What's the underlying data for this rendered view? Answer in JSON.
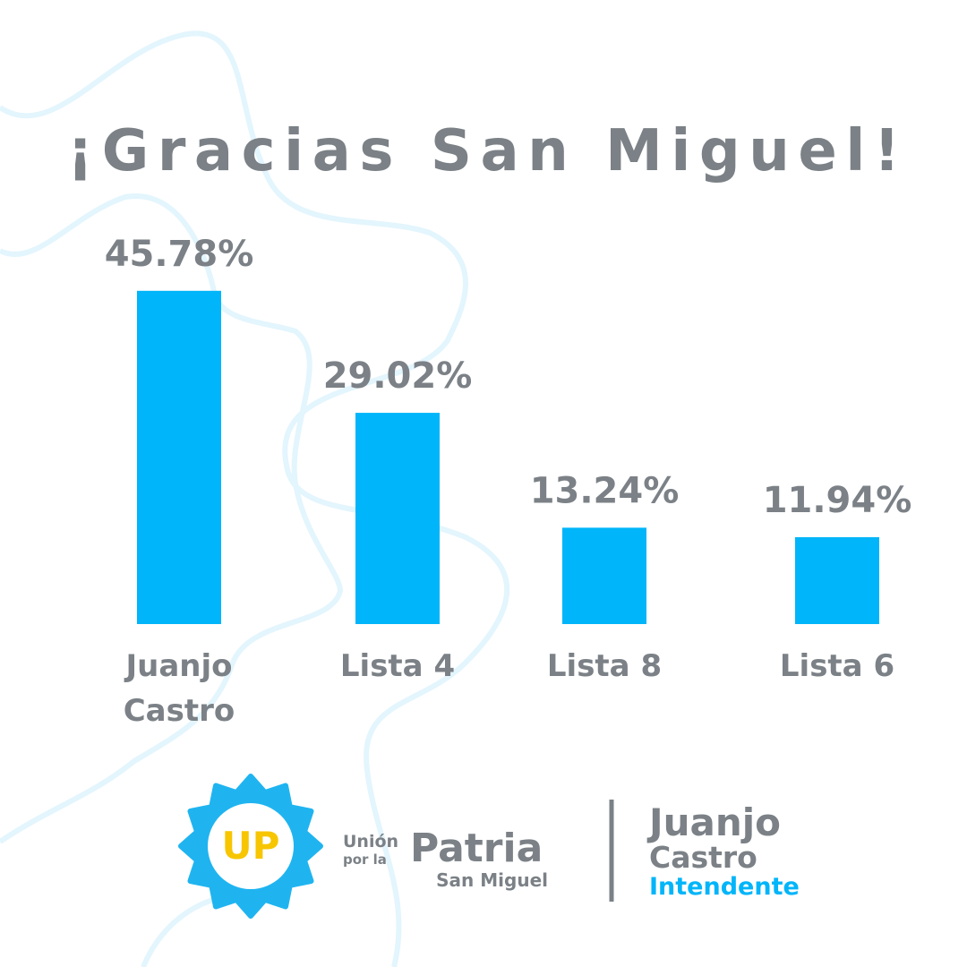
{
  "chart_data": {
    "type": "bar",
    "title": "¡Gracias San Miguel!",
    "categories": [
      "Juanjo Castro",
      "Lista 4",
      "Lista 8",
      "Lista 6"
    ],
    "values": [
      45.78,
      29.02,
      13.24,
      11.94
    ],
    "value_labels": [
      "45.78%",
      "29.02%",
      "13.24%",
      "11.94%"
    ],
    "color": "#00b5f9"
  },
  "footer": {
    "logo_badge": "UP",
    "party_line1": "Unión",
    "party_line2": "por la",
    "party_name": "Patria",
    "party_place": "San Miguel",
    "candidate_first": "Juanjo",
    "candidate_last": "Castro",
    "candidate_role": "Intendente"
  }
}
